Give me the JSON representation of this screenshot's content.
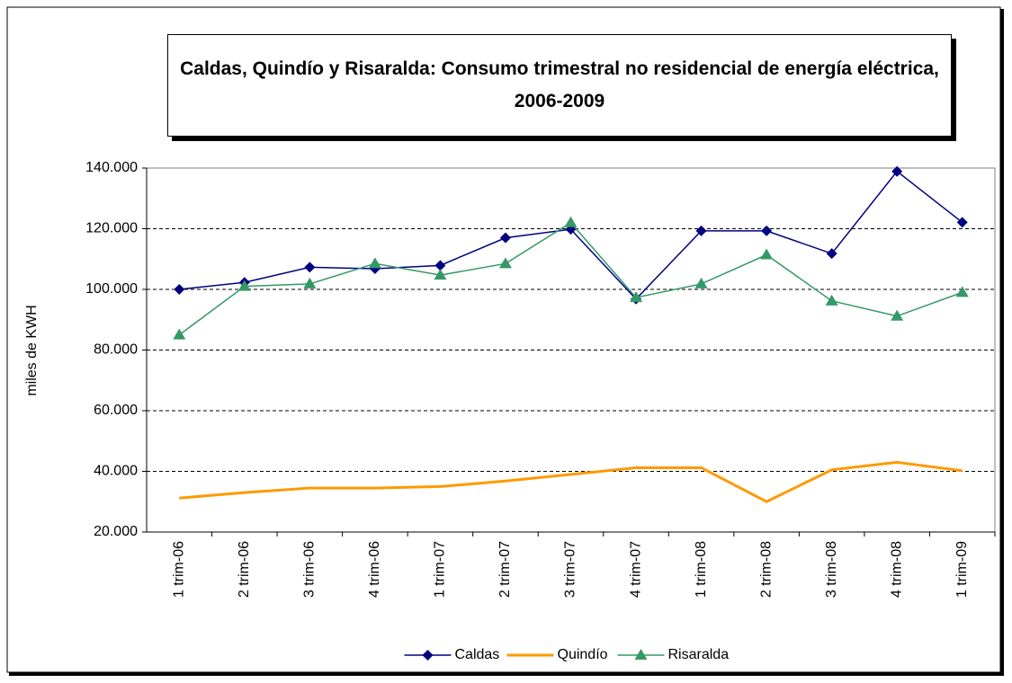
{
  "chart_data": {
    "type": "line",
    "title": "Caldas, Quindío y Risaralda: Consumo trimestral  no residencial de energía eléctrica, 2006-2009",
    "y_label": "miles de KWH",
    "categories": [
      "1 trim-06",
      "2 trim-06",
      "3 trim-06",
      "4 trim-06",
      "1 trim-07",
      "2 trim-07",
      "3 trim-07",
      "4 trim-07",
      "1 trim-08",
      "2 trim-08",
      "3 trim-08",
      "4 trim-08",
      "1 trim-09"
    ],
    "series": [
      {
        "name": "Caldas",
        "color": "#000080",
        "marker": "diamond",
        "values": [
          100000,
          102300,
          107300,
          106800,
          107900,
          117000,
          119800,
          96800,
          119300,
          119300,
          111800,
          138900,
          122100
        ]
      },
      {
        "name": "Quindío",
        "color": "#ff9900",
        "marker": "none",
        "values": [
          31200,
          33000,
          34500,
          34500,
          35000,
          36800,
          39000,
          41200,
          41200,
          30000,
          40500,
          43000,
          40200
        ]
      },
      {
        "name": "Risaralda",
        "color": "#339966",
        "marker": "triangle",
        "values": [
          85000,
          101000,
          101800,
          108500,
          104700,
          108500,
          122000,
          97300,
          101800,
          111400,
          96200,
          91200,
          99000
        ]
      }
    ],
    "ylim": [
      20000,
      140000
    ],
    "yticks": [
      {
        "value": 20000,
        "label": "20.000"
      },
      {
        "value": 40000,
        "label": "40.000"
      },
      {
        "value": 60000,
        "label": "60.000"
      },
      {
        "value": 80000,
        "label": "80.000"
      },
      {
        "value": 100000,
        "label": "100.000"
      },
      {
        "value": 120000,
        "label": "120.000"
      },
      {
        "value": 140000,
        "label": "140.000"
      }
    ],
    "grid": true,
    "legend": "bottom"
  }
}
